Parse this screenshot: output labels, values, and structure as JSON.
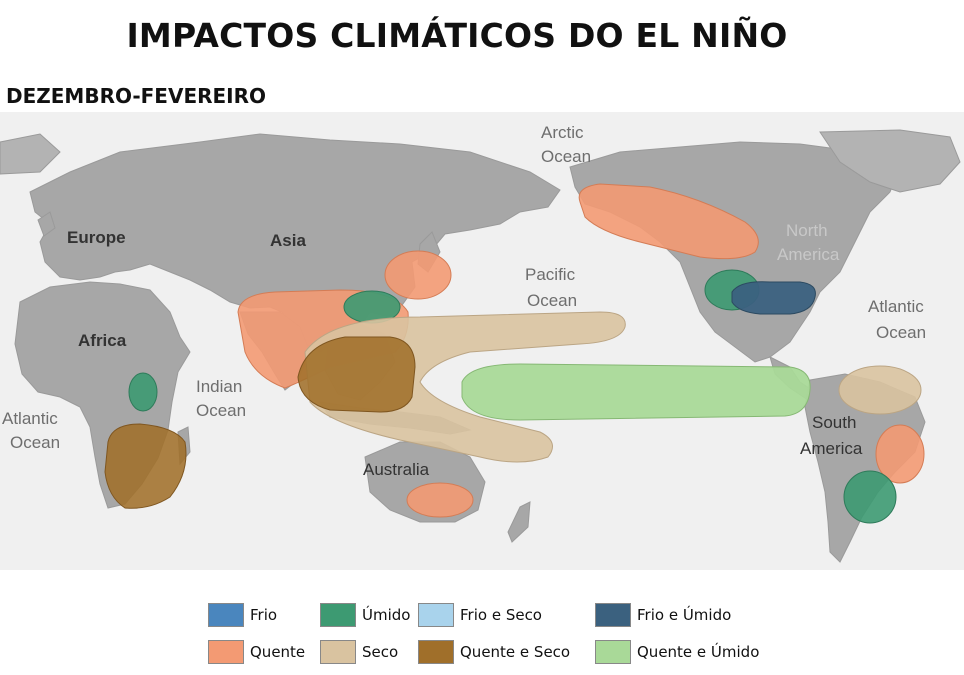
{
  "title": "IMPACTOS CLIMÁTICOS DO EL NIÑO",
  "subtitle": "DEZEMBRO-FEVEREIRO",
  "colors": {
    "frio": "#4a86be",
    "umido": "#3d9a72",
    "frio_seco": "#a9d3ec",
    "frio_umido": "#3b617f",
    "quente": "#f39a73",
    "seco": "#d9c3a0",
    "quente_seco": "#a06f2a",
    "quente_umido": "#a9d998",
    "land": "#a7a7a7",
    "ocean": "#f0f0f0"
  },
  "map_labels": {
    "arctic": "Arctic",
    "arctic_ocean": "Ocean",
    "europe": "Europe",
    "asia": "Asia",
    "africa": "Africa",
    "indian": "Indian",
    "indian_ocean": "Ocean",
    "pacific": "Pacific",
    "pacific_ocean": "Ocean",
    "north": "North",
    "north_america": "America",
    "atlantic_e": "Atlantic",
    "atlantic_e_ocean": "Ocean",
    "atlantic_w": "Atlantic",
    "atlantic_w_ocean": "Ocean",
    "south": "South",
    "south_america": "America",
    "australia": "Australia"
  },
  "legend": [
    {
      "label": "Frio",
      "color": "#4a86be"
    },
    {
      "label": "Úmido",
      "color": "#3d9a72"
    },
    {
      "label": "Frio e Seco",
      "color": "#a9d3ec"
    },
    {
      "label": "Frio e Úmido",
      "color": "#3b617f"
    },
    {
      "label": "Quente",
      "color": "#f39a73"
    },
    {
      "label": "Seco",
      "color": "#d9c3a0"
    },
    {
      "label": "Quente e Seco",
      "color": "#a06f2a"
    },
    {
      "label": "Quente e Úmido",
      "color": "#a9d998"
    }
  ]
}
